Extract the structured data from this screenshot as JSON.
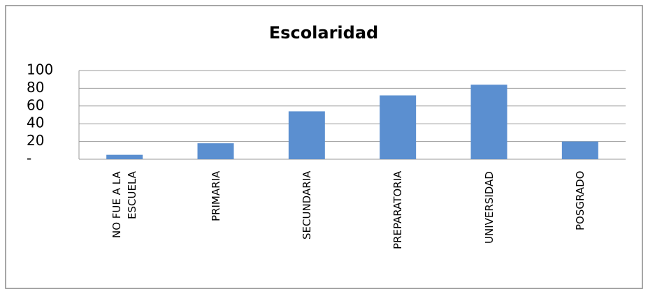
{
  "chart_data": {
    "type": "bar",
    "title": "Escolaridad",
    "categories": [
      "NO FUE A LA ESCUELA",
      "PRIMARIA",
      "SECUNDARIA",
      "PREPARATORIA",
      "UNIVERSIDAD",
      "POSGRADO"
    ],
    "values": [
      5,
      18,
      54,
      72,
      84,
      20
    ],
    "color": "#5b8fd0",
    "ylim": [
      0,
      100
    ],
    "yticks": [
      {
        "value": 0,
        "label": "-"
      },
      20,
      40,
      60,
      80,
      100
    ],
    "grid": true
  }
}
